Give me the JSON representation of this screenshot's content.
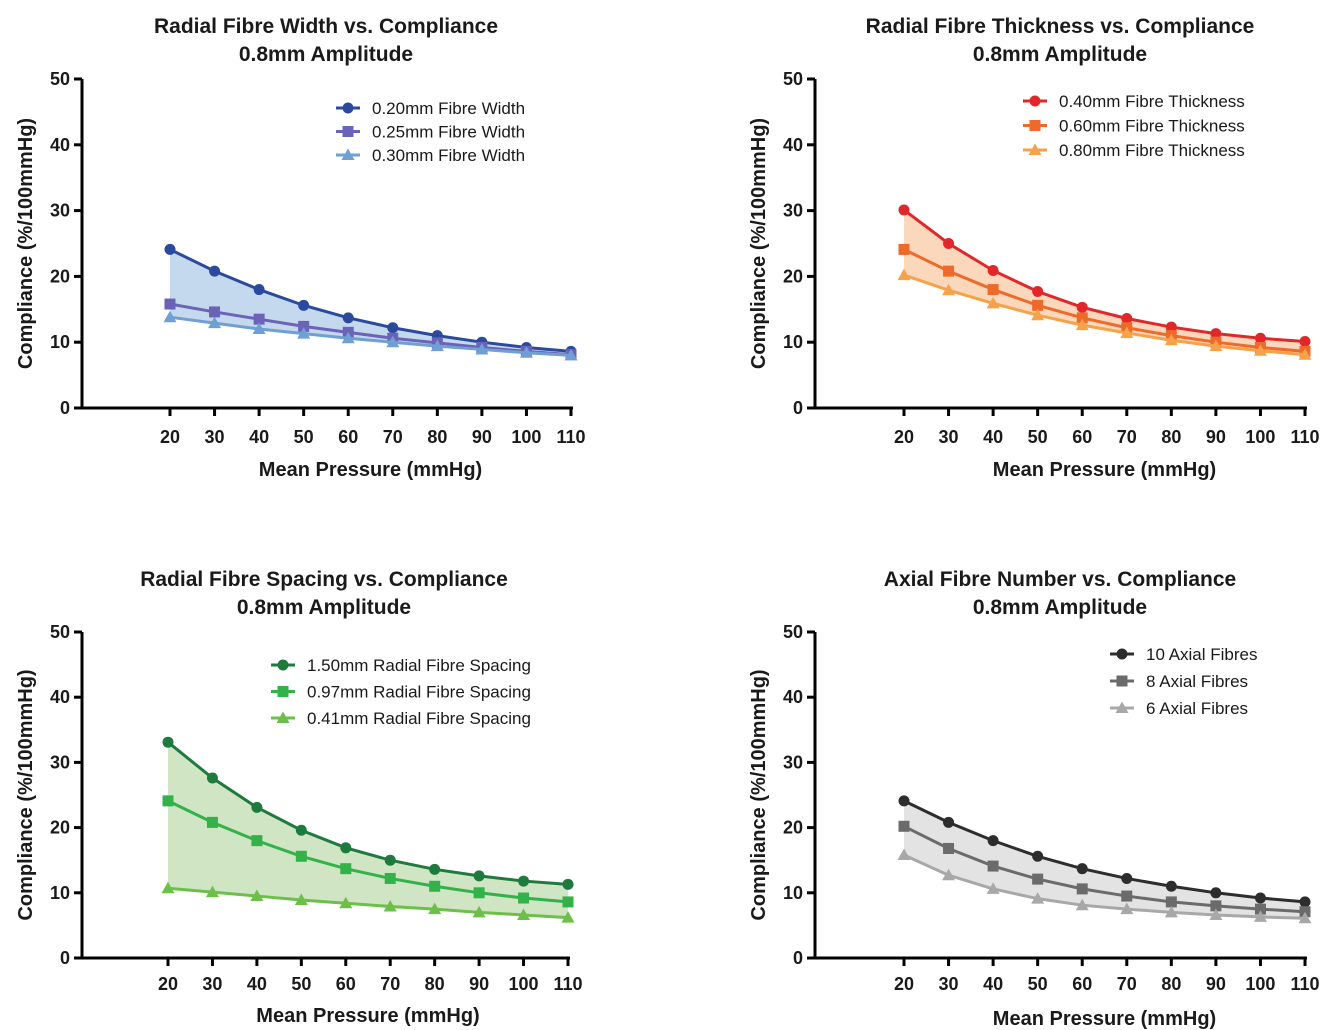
{
  "chart_data": [
    {
      "type": "line",
      "title": "Radial Fibre Width vs. Compliance",
      "subtitle": "0.8mm Amplitude",
      "xlabel": "Mean Pressure (mmHg)",
      "ylabel": "Compliance (%/100mmHg)",
      "x": [
        20,
        30,
        40,
        50,
        60,
        70,
        80,
        90,
        100,
        110
      ],
      "ylim": [
        0,
        50
      ],
      "yticks": [
        0,
        10,
        20,
        30,
        40,
        50
      ],
      "legend_position": "top-right",
      "fill_color": "#c5d9ee",
      "series": [
        {
          "name": "0.20mm Fibre Width",
          "marker": "circle",
          "color": "#2b4a9e",
          "values": [
            24.1,
            20.8,
            18.0,
            15.6,
            13.7,
            12.2,
            11.0,
            10.0,
            9.2,
            8.6
          ]
        },
        {
          "name": "0.25mm Fibre Width",
          "marker": "square",
          "color": "#6a63b8",
          "values": [
            15.8,
            14.6,
            13.5,
            12.4,
            11.5,
            10.6,
            9.9,
            9.2,
            8.6,
            8.1
          ]
        },
        {
          "name": "0.30mm Fibre Width",
          "marker": "triangle",
          "color": "#6f9fd3",
          "values": [
            13.8,
            12.9,
            12.0,
            11.3,
            10.6,
            10.0,
            9.4,
            8.9,
            8.4,
            8.0
          ]
        }
      ]
    },
    {
      "type": "line",
      "title": "Radial Fibre Thickness vs. Compliance",
      "subtitle": "0.8mm Amplitude",
      "xlabel": "Mean Pressure (mmHg)",
      "ylabel": "Compliance (%/100mmHg)",
      "x": [
        20,
        30,
        40,
        50,
        60,
        70,
        80,
        90,
        100,
        110
      ],
      "ylim": [
        0,
        50
      ],
      "yticks": [
        0,
        10,
        20,
        30,
        40,
        50
      ],
      "legend_position": "top-right",
      "fill_color": "#fbd8bc",
      "series": [
        {
          "name": "0.40mm Fibre Thickness",
          "marker": "circle",
          "color": "#e0282b",
          "values": [
            30.1,
            25.0,
            20.9,
            17.7,
            15.3,
            13.6,
            12.3,
            11.3,
            10.6,
            10.1
          ]
        },
        {
          "name": "0.60mm Fibre Thickness",
          "marker": "square",
          "color": "#ee6a2a",
          "values": [
            24.1,
            20.8,
            18.0,
            15.6,
            13.7,
            12.2,
            11.0,
            10.0,
            9.2,
            8.6
          ]
        },
        {
          "name": "0.80mm Fibre Thickness",
          "marker": "triangle",
          "color": "#f5a24b",
          "values": [
            20.2,
            17.9,
            15.9,
            14.1,
            12.6,
            11.4,
            10.3,
            9.4,
            8.7,
            8.1
          ]
        }
      ]
    },
    {
      "type": "line",
      "title": "Radial Fibre Spacing vs. Compliance",
      "subtitle": "0.8mm Amplitude",
      "xlabel": "Mean Pressure (mmHg)",
      "ylabel": "Compliance (%/100mmHg)",
      "x": [
        20,
        30,
        40,
        50,
        60,
        70,
        80,
        90,
        100,
        110
      ],
      "ylim": [
        0,
        50
      ],
      "yticks": [
        0,
        10,
        20,
        30,
        40,
        50
      ],
      "legend_position": "top-right",
      "fill_color": "#cfe5c4",
      "series": [
        {
          "name": "1.50mm Radial Fibre Spacing",
          "marker": "circle",
          "color": "#1f7a3e",
          "values": [
            33.1,
            27.6,
            23.1,
            19.6,
            16.9,
            15.0,
            13.6,
            12.6,
            11.8,
            11.3
          ]
        },
        {
          "name": "0.97mm Radial Fibre Spacing",
          "marker": "square",
          "color": "#33b24a",
          "values": [
            24.1,
            20.8,
            18.0,
            15.6,
            13.7,
            12.2,
            11.0,
            10.0,
            9.2,
            8.6
          ]
        },
        {
          "name": "0.41mm Radial Fibre Spacing",
          "marker": "triangle",
          "color": "#6cc04a",
          "values": [
            10.7,
            10.1,
            9.5,
            8.9,
            8.4,
            7.9,
            7.5,
            7.0,
            6.6,
            6.2
          ]
        }
      ]
    },
    {
      "type": "line",
      "title": "Axial Fibre Number vs. Compliance",
      "subtitle": "0.8mm Amplitude",
      "xlabel": "Mean Pressure (mmHg)",
      "ylabel": "Compliance (%/100mmHg)",
      "x": [
        20,
        30,
        40,
        50,
        60,
        70,
        80,
        90,
        100,
        110
      ],
      "ylim": [
        0,
        50
      ],
      "yticks": [
        0,
        10,
        20,
        30,
        40,
        50
      ],
      "legend_position": "top-right",
      "fill_color": "#e3e3e3",
      "series": [
        {
          "name": "10 Axial Fibres",
          "marker": "circle",
          "color": "#2d2d2d",
          "values": [
            24.1,
            20.8,
            18.0,
            15.6,
            13.7,
            12.2,
            11.0,
            10.0,
            9.2,
            8.6
          ]
        },
        {
          "name": "8 Axial Fibres",
          "marker": "square",
          "color": "#6b6b6b",
          "values": [
            20.2,
            16.8,
            14.1,
            12.1,
            10.6,
            9.5,
            8.6,
            8.0,
            7.5,
            7.1
          ]
        },
        {
          "name": "6 Axial Fibres",
          "marker": "triangle",
          "color": "#a8a8a8",
          "values": [
            15.8,
            12.7,
            10.6,
            9.1,
            8.1,
            7.5,
            7.0,
            6.6,
            6.3,
            6.1
          ]
        }
      ]
    }
  ]
}
